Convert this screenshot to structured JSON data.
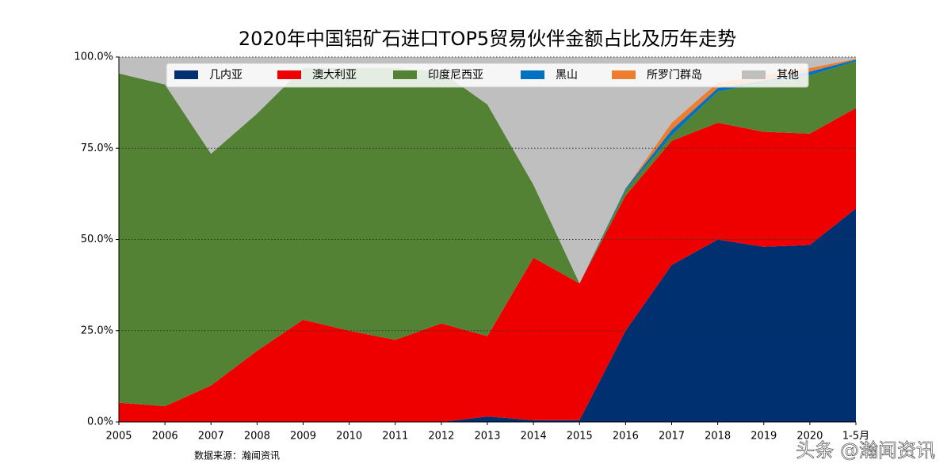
{
  "chart_data": {
    "type": "stacked_area",
    "title": "2020年中国铝矿石进口TOP5贸易伙伴金额占比及历年走势",
    "source": "数据来源：瀚闻资讯",
    "watermark": "头条 @瀚闻资讯",
    "categories": [
      "2005",
      "2006",
      "2007",
      "2008",
      "2009",
      "2010",
      "2011",
      "2012",
      "2013",
      "2014",
      "2015",
      "2016",
      "2017",
      "2018",
      "2019",
      "2020",
      "1-5月"
    ],
    "series": [
      {
        "name": "几内亚",
        "color": "#003070",
        "values": [
          0,
          0,
          0,
          0,
          0,
          0,
          0,
          0,
          1.5,
          0.5,
          0.5,
          25,
          43,
          50,
          48,
          48.5,
          58.5
        ]
      },
      {
        "name": "澳大利亚",
        "color": "#ee0000",
        "values": [
          5.3,
          4.3,
          10,
          19.5,
          28,
          25,
          22.5,
          27,
          22,
          44.5,
          37.5,
          37,
          34,
          32,
          31.5,
          30.5,
          27.5
        ]
      },
      {
        "name": "印度尼西亚",
        "color": "#548235",
        "values": [
          90.2,
          88.2,
          63.5,
          65,
          69,
          72,
          74.5,
          69,
          63.5,
          20,
          0,
          1.5,
          1.5,
          8.5,
          13.5,
          16,
          12.8
        ]
      },
      {
        "name": "黑山",
        "color": "#0070c0",
        "values": [
          0,
          0,
          0,
          0,
          0,
          0,
          0,
          0,
          0,
          0,
          0,
          0.5,
          1.5,
          1,
          0.5,
          1,
          0.5
        ]
      },
      {
        "name": "所罗门群岛",
        "color": "#ed7d31",
        "values": [
          0,
          0,
          0,
          0,
          0,
          0,
          0,
          0,
          0,
          0,
          0,
          0,
          2,
          1.5,
          1.5,
          1,
          0.2
        ]
      },
      {
        "name": "其他",
        "color": "#bfbfbf",
        "values": [
          4.5,
          7.5,
          26.5,
          15.5,
          3,
          3,
          3,
          4,
          13,
          35,
          62,
          36,
          18,
          7,
          5,
          3,
          0.5
        ]
      }
    ],
    "ylim": [
      0,
      100
    ],
    "yticks": [
      {
        "value": 0,
        "label": "0.0%"
      },
      {
        "value": 25,
        "label": "25.0%"
      },
      {
        "value": 50,
        "label": "50.0%"
      },
      {
        "value": 75,
        "label": "75.0%"
      },
      {
        "value": 100,
        "label": "100.0%"
      }
    ],
    "grid": true,
    "legend": "top"
  }
}
